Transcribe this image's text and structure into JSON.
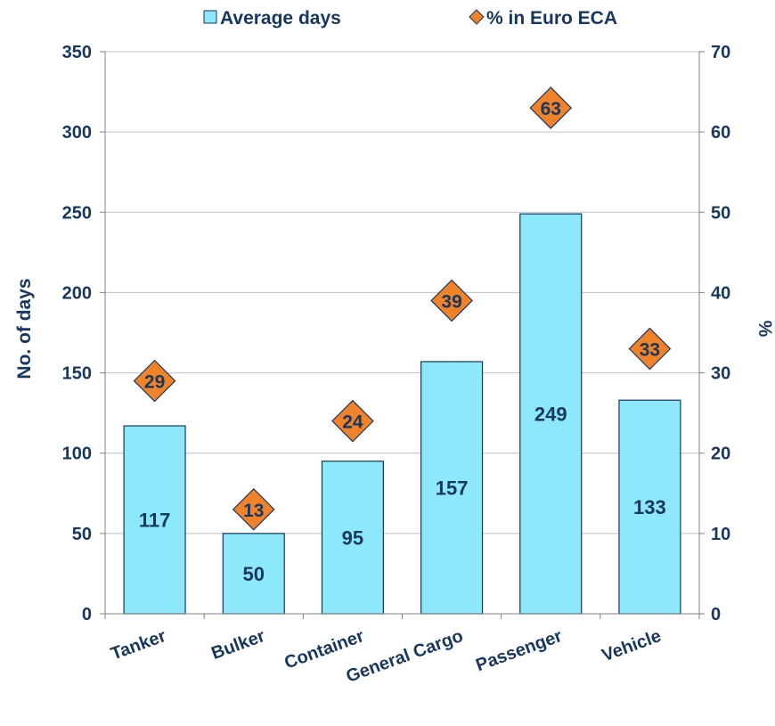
{
  "chart_data": {
    "type": "bar",
    "categories": [
      "Tanker",
      "Bulker",
      "Container",
      "General Cargo",
      "Passenger",
      "Vehicle"
    ],
    "series": [
      {
        "name": "Average days",
        "kind": "bar",
        "axis": "left",
        "values": [
          117,
          50,
          95,
          157,
          249,
          133
        ],
        "color": "#8DE8FB"
      },
      {
        "name": "% in Euro ECA",
        "kind": "marker",
        "axis": "right",
        "values": [
          29,
          13,
          24,
          39,
          63,
          33
        ],
        "color": "#F0822A"
      }
    ],
    "ylabel": "No. of days",
    "y2label": "%",
    "ylim": [
      0,
      350
    ],
    "y2lim": [
      0,
      70
    ],
    "yticks": [
      0,
      50,
      100,
      150,
      200,
      250,
      300,
      350
    ],
    "y2ticks": [
      0,
      10,
      20,
      30,
      40,
      50,
      60,
      70
    ],
    "grid": true,
    "legend_position": "top-center",
    "colors": {
      "text": "#17375E",
      "bar_stroke": "#17375E",
      "grid": "#BFBFBF",
      "axis": "#808080"
    }
  }
}
